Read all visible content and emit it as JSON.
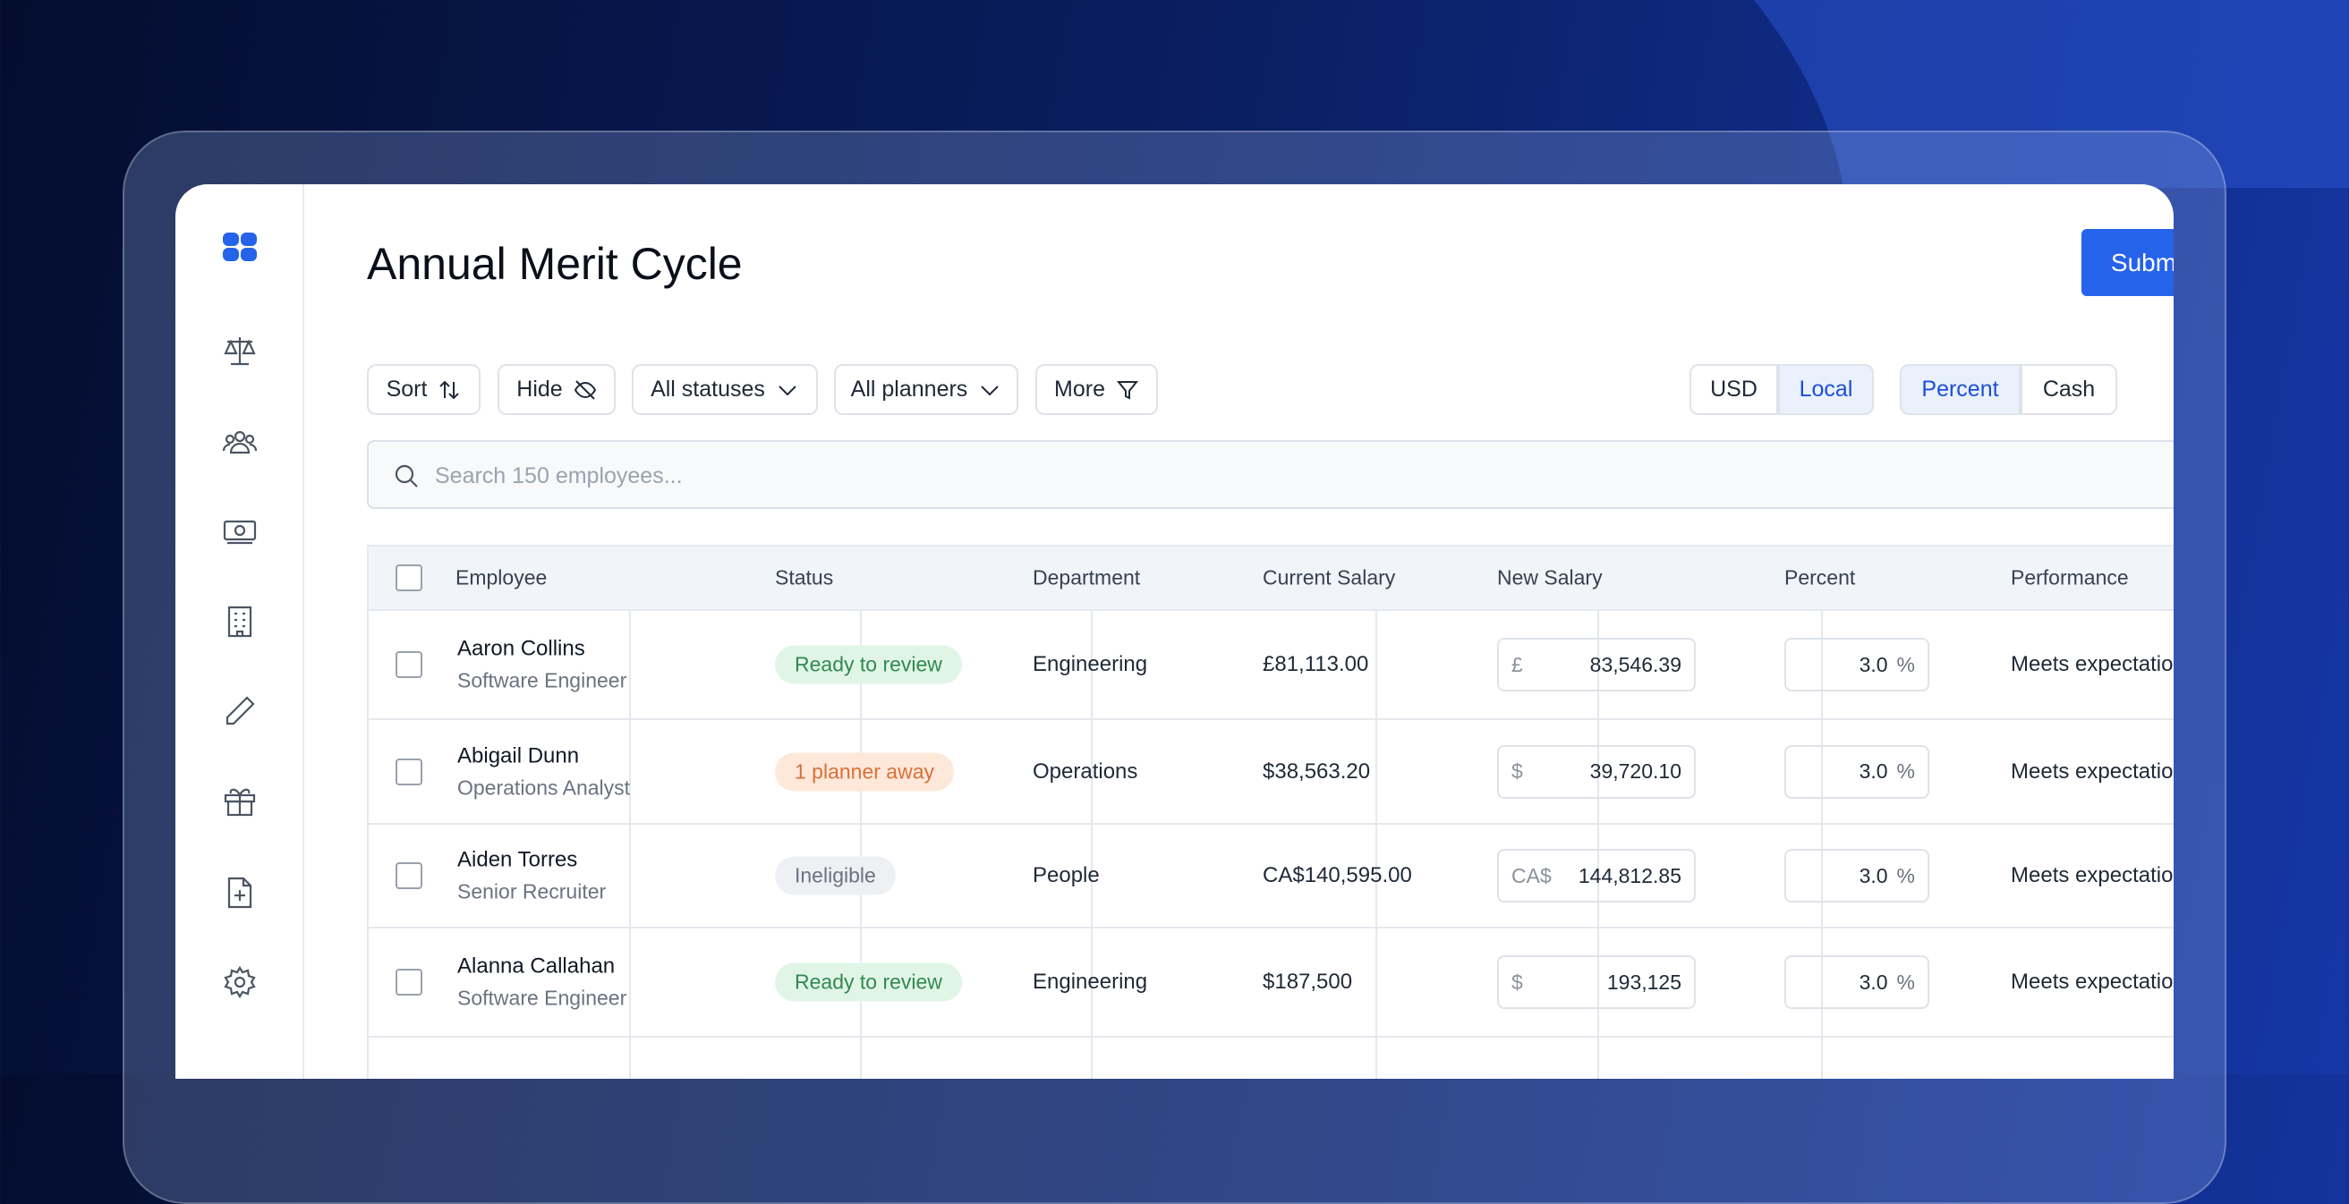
{
  "header": {
    "title": "Annual Merit Cycle",
    "submit": "Submit"
  },
  "toolbar": {
    "filters": [
      "Sort",
      "Hide",
      "All statuses",
      "All planners",
      "More"
    ],
    "currency": [
      "USD",
      "Local"
    ],
    "mode": [
      "Percent",
      "Cash"
    ]
  },
  "search": {
    "placeholder": "Search 150 employees..."
  },
  "table": {
    "columns": [
      "Employee",
      "Status",
      "Department",
      "Current Salary",
      "New Salary",
      "Percent",
      "Performance"
    ],
    "rows": [
      {
        "name": "Aaron Collins",
        "title": "Software Engineer",
        "status": "Ready to review",
        "department": "Engineering",
        "current_salary": "£81,113.00",
        "currency": "£",
        "new_salary": "83,546.39",
        "percent": "3.0",
        "percent_unit": "%",
        "performance": "Meets expectations"
      },
      {
        "name": "Abigail Dunn",
        "title": "Operations Analyst",
        "status": "1 planner away",
        "department": "Operations",
        "current_salary": "$38,563.20",
        "currency": "$",
        "new_salary": "39,720.10",
        "percent": "3.0",
        "percent_unit": "%",
        "performance": "Meets expectations"
      },
      {
        "name": "Aiden Torres",
        "title": "Senior Recruiter",
        "status": "Ineligible",
        "department": "People",
        "current_salary": "CA$140,595.00",
        "currency": "CA$",
        "new_salary": "144,812.85",
        "percent": "3.0",
        "percent_unit": "%",
        "performance": "Meets expectations"
      },
      {
        "name": "Alanna Callahan",
        "title": "Software Engineer",
        "status": "Ready to review",
        "department": "Engineering",
        "current_salary": "$187,500",
        "currency": "$",
        "new_salary": "193,125",
        "percent": "3.0",
        "percent_unit": "%",
        "performance": "Meets expectations"
      }
    ]
  }
}
